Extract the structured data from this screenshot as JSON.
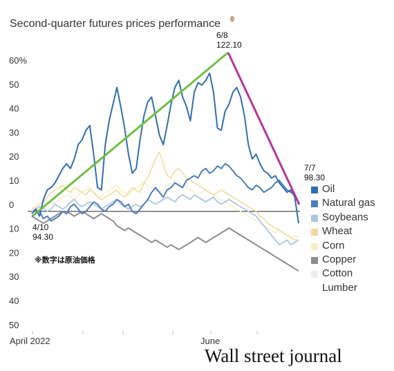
{
  "chart_data": {
    "type": "line",
    "title": "Second-quarter futures prices performance",
    "y_ticks": [
      "60%",
      "50",
      "40",
      "30",
      "20",
      "10",
      "0",
      "10",
      "20",
      "30",
      "40",
      "50"
    ],
    "y_range": [
      -50,
      62
    ],
    "x_labels": [
      "April 2022",
      "June"
    ],
    "legend_placement": "right",
    "grid": false,
    "annotations": [
      {
        "date": "6/8",
        "value": "122.10"
      },
      {
        "date": "7/7",
        "value": "98.30"
      },
      {
        "date": "4/10",
        "value": "94.30"
      }
    ],
    "note": "※数字は原油価格",
    "credit": "Wall street journal",
    "series": [
      {
        "name": "Oil",
        "color": "#2f6db1",
        "values": [
          -1,
          1,
          -2,
          5,
          9,
          10,
          12,
          15,
          18,
          20,
          18,
          22,
          28,
          30,
          34,
          36,
          24,
          10,
          9,
          28,
          38,
          45,
          52,
          44,
          35,
          24,
          16,
          18,
          30,
          40,
          46,
          48,
          40,
          32,
          28,
          36,
          45,
          52,
          55,
          48,
          44,
          38,
          50,
          54,
          53,
          55,
          58,
          50,
          35,
          34,
          42,
          45,
          50,
          52,
          48,
          40,
          28,
          22,
          24,
          20,
          17,
          16,
          14,
          15,
          12,
          10,
          8,
          9,
          6,
          -5
        ]
      },
      {
        "name": "Natural gas",
        "color": "#4a7dbd",
        "values": [
          -2,
          -1,
          0,
          -3,
          -2,
          -4,
          -3,
          -2,
          0,
          -1,
          2,
          3,
          1,
          -1,
          0,
          2,
          4,
          3,
          1,
          0,
          2,
          3,
          5,
          4,
          2,
          3,
          0,
          -1,
          1,
          3,
          5,
          8,
          10,
          8,
          6,
          9,
          10,
          12,
          11,
          10,
          13,
          14,
          15,
          14,
          17,
          18,
          16,
          17,
          19,
          18,
          20,
          19,
          17,
          15,
          14,
          12,
          10,
          9,
          11,
          10,
          8,
          9,
          10,
          12,
          13,
          11,
          9,
          8,
          7,
          3
        ]
      },
      {
        "name": "Soybeans",
        "color": "#a9c6e3",
        "values": [
          0,
          1,
          2,
          1,
          0,
          1,
          3,
          2,
          1,
          2,
          4,
          5,
          3,
          2,
          3,
          4,
          3,
          2,
          1,
          2,
          3,
          4,
          5,
          3,
          2,
          1,
          2,
          3,
          2,
          3,
          5,
          4,
          3,
          4,
          5,
          6,
          5,
          4,
          6,
          7,
          6,
          5,
          7,
          6,
          5,
          4,
          5,
          6,
          4,
          3,
          4,
          5,
          4,
          3,
          2,
          1,
          0,
          -1,
          -2,
          -4,
          -6,
          -8,
          -10,
          -12,
          -14,
          -13,
          -12,
          -14,
          -13,
          -12
        ]
      },
      {
        "name": "Wheat",
        "color": "#efdc9b",
        "values": [
          1,
          2,
          3,
          4,
          6,
          8,
          9,
          10,
          11,
          9,
          8,
          10,
          9,
          8,
          7,
          9,
          8,
          6,
          5,
          6,
          7,
          8,
          9,
          7,
          6,
          8,
          10,
          9,
          8,
          12,
          14,
          18,
          22,
          25,
          20,
          15,
          14,
          17,
          18,
          16,
          14,
          13,
          12,
          11,
          10,
          9,
          8,
          7,
          8,
          9,
          8,
          7,
          6,
          5,
          4,
          3,
          2,
          1,
          0,
          -2,
          -3,
          -5,
          -6,
          -7,
          -8,
          -9,
          -10,
          -11,
          -12,
          -12
        ]
      },
      {
        "name": "Corn",
        "color": "#f7efc9",
        "values": [
          0,
          1,
          1,
          2,
          3,
          4,
          3,
          5,
          6,
          7,
          6,
          5,
          7,
          8,
          9,
          10,
          8,
          7,
          6,
          8,
          9,
          10,
          11,
          9,
          8,
          7,
          9,
          10,
          11,
          12,
          11,
          10,
          9,
          8,
          10,
          11,
          12,
          13,
          12,
          11,
          10,
          9,
          8,
          7,
          8,
          9,
          8,
          7,
          6,
          5,
          4,
          3,
          2,
          1,
          0,
          -1,
          -2,
          -3,
          -4,
          -5,
          -6,
          -7,
          -8,
          -9,
          -8,
          -9,
          -10,
          -11,
          -10,
          -11
        ]
      },
      {
        "name": "Copper",
        "color": "#8c8c8c",
        "values": [
          -2,
          -3,
          -4,
          -5,
          -4,
          -3,
          -2,
          -1,
          0,
          0,
          -1,
          -2,
          -1,
          0,
          -1,
          -2,
          -3,
          -2,
          -1,
          -2,
          -3,
          -4,
          -6,
          -7,
          -8,
          -7,
          -8,
          -9,
          -10,
          -11,
          -12,
          -13,
          -12,
          -13,
          -14,
          -15,
          -14,
          -15,
          -16,
          -15,
          -14,
          -13,
          -12,
          -11,
          -12,
          -13,
          -12,
          -11,
          -10,
          -9,
          -8,
          -7,
          -8,
          -9,
          -10,
          -11,
          -12,
          -13,
          -14,
          -15,
          -16,
          -17,
          -18,
          -19,
          -20,
          -21,
          -22,
          -23,
          -24,
          -25
        ]
      },
      {
        "name": "Cotton",
        "color": "#eeeeee",
        "values": []
      },
      {
        "name": "Lumber",
        "color": "#ffffff",
        "values": []
      }
    ],
    "trend_lines": [
      {
        "from": "4/10",
        "to": "6/8",
        "color": "#6fbf45"
      },
      {
        "from": "6/8",
        "to": "7/7",
        "color": "#b5359a"
      }
    ]
  }
}
